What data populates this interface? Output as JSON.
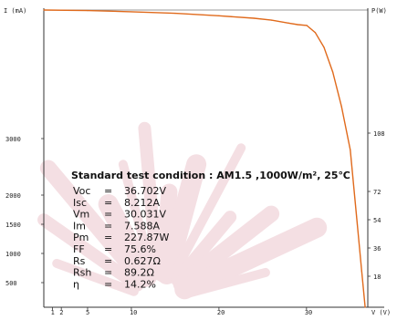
{
  "chart_data": {
    "type": "line",
    "title": "",
    "xlabel": "V (V)",
    "ylabel_left": "I (mA)",
    "ylabel_right": "P(W)",
    "xlim": [
      0,
      37
    ],
    "ylim_left": [
      0,
      9000
    ],
    "ylim_right": [
      0,
      240
    ],
    "x_ticks": [
      {
        "value": 1,
        "label": "1"
      },
      {
        "value": 2,
        "label": "2"
      },
      {
        "value": 5,
        "label": "5"
      },
      {
        "value": 10,
        "label": "10"
      },
      {
        "value": 20,
        "label": "20"
      },
      {
        "value": 30,
        "label": "30"
      }
    ],
    "y_left_ticks": [
      500,
      1000,
      1500,
      2000,
      3000
    ],
    "y_right_ticks": [
      18,
      36,
      54,
      72,
      108
    ],
    "grid": false,
    "series": [
      {
        "name": "",
        "color": "#e06a1c",
        "points": [
          [
            0,
            8212
          ],
          [
            5,
            8190
          ],
          [
            10,
            8140
          ],
          [
            15,
            8080
          ],
          [
            20,
            7980
          ],
          [
            24,
            7880
          ],
          [
            26,
            7800
          ],
          [
            28,
            7680
          ],
          [
            29,
            7620
          ],
          [
            30.031,
            7588
          ],
          [
            31,
            7300
          ],
          [
            32,
            6700
          ],
          [
            33,
            5700
          ],
          [
            34,
            4300
          ],
          [
            35,
            2800
          ],
          [
            35.8,
            1500
          ],
          [
            36.3,
            700
          ],
          [
            36.702,
            0
          ]
        ]
      }
    ],
    "annotation": {
      "title": "Standard test condition : AM1.5 ,1000W/m², 25℃",
      "params": [
        {
          "label": "Voc",
          "value": "36.702V"
        },
        {
          "label": "Isc",
          "value": "8.212A"
        },
        {
          "label": "Vm",
          "value": "30.031V"
        },
        {
          "label": "Im",
          "value": "7.588A"
        },
        {
          "label": "Pm",
          "value": "227.87W"
        },
        {
          "label": "FF",
          "value": "75.6%"
        },
        {
          "label": "Rs",
          "value": "0.627Ω"
        },
        {
          "label": "Rsh",
          "value": "89.2Ω"
        },
        {
          "label": "η",
          "value": "14.2%"
        }
      ]
    }
  },
  "colors": {
    "background": "#ffffff",
    "axis": "#333333",
    "curve": "#e06a1c",
    "decor": "#e8b9c2"
  }
}
